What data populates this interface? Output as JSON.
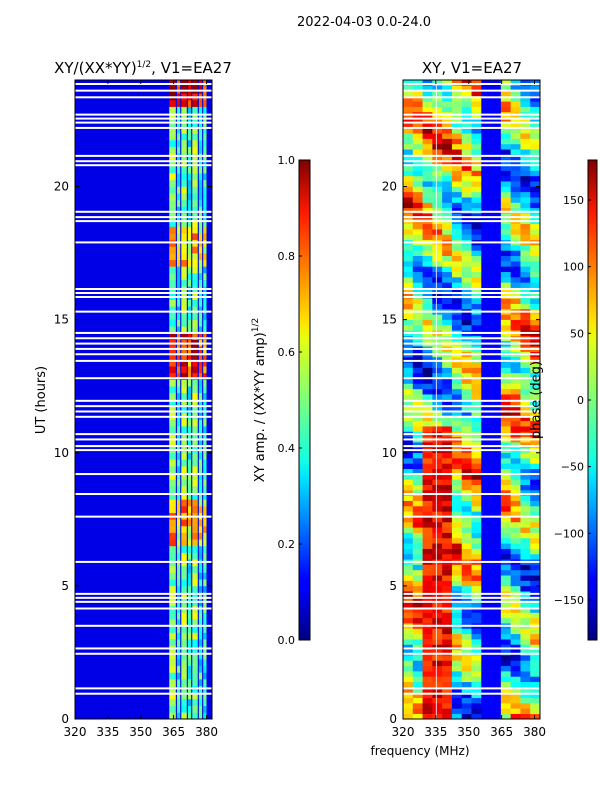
{
  "suptitle": "2022-04-03 0.0-24.0",
  "shared_xlabel": "frequency (MHz)",
  "chart_data": [
    {
      "type": "heatmap",
      "title": "XY/(XX*YY)",
      "title_exponent": "1/2",
      "title_suffix": ", V1=EA27",
      "xlabel": "",
      "ylabel": "UT (hours)",
      "xlim": [
        320,
        382.5
      ],
      "ylim": [
        0,
        24
      ],
      "xticks": [
        320,
        335,
        350,
        365,
        380
      ],
      "yticks": [
        0,
        5,
        10,
        15,
        20
      ],
      "background_value": 0.1,
      "rfi_bands_mhz": [
        [
          363,
          366
        ],
        [
          366.5,
          368
        ],
        [
          368.5,
          371
        ],
        [
          371.5,
          373
        ],
        [
          373.5,
          376
        ],
        [
          376.5,
          378
        ],
        [
          378.5,
          380
        ]
      ],
      "colorbar": {
        "label": "XY amp. / (XX*YY amp)",
        "label_exponent": "1/2",
        "range": [
          0,
          1
        ],
        "ticks": [
          "0.0",
          "0.2",
          "0.4",
          "0.6",
          "0.8",
          "1.0"
        ],
        "colormap": "jet"
      },
      "flagged_ut_hours": [
        0.95,
        1.15,
        2.45,
        2.65,
        3.5,
        4.15,
        4.4,
        4.55,
        4.7,
        5.9,
        7.6,
        8.45,
        9.2,
        10.1,
        10.25,
        10.5,
        10.7,
        11.35,
        11.55,
        11.75,
        11.95,
        12.8,
        13.45,
        13.7,
        13.9,
        14.1,
        14.3,
        14.5,
        15.3,
        15.85,
        16.0,
        16.15,
        17.9,
        18.7,
        18.85,
        19.05,
        20.8,
        20.95,
        21.15,
        22.2,
        22.4,
        22.55,
        22.7,
        23.35,
        23.6,
        23.85
      ]
    },
    {
      "type": "heatmap",
      "title": "XY, V1=EA27",
      "xlabel": "frequency (MHz)",
      "ylabel": "",
      "xlim": [
        320,
        382.5
      ],
      "ylim": [
        0,
        24
      ],
      "xticks": [
        320,
        335,
        350,
        365,
        380
      ],
      "yticks": [
        0,
        5,
        10,
        15,
        20
      ],
      "colorbar": {
        "label": "phase (deg)",
        "range": [
          -180,
          180
        ],
        "ticks": [
          "−150",
          "−100",
          "−50",
          "0",
          "50",
          "100",
          "150"
        ],
        "colormap": "jet"
      },
      "flagged_ut_hours": [
        0.95,
        1.15,
        2.45,
        2.65,
        3.5,
        4.15,
        4.4,
        4.55,
        4.7,
        5.9,
        7.6,
        8.45,
        9.2,
        10.1,
        10.25,
        10.5,
        10.7,
        11.35,
        11.55,
        11.75,
        11.95,
        12.8,
        13.45,
        13.7,
        13.9,
        14.1,
        14.3,
        14.5,
        15.3,
        15.85,
        16.0,
        16.15,
        17.9,
        18.7,
        18.85,
        19.05,
        20.8,
        20.95,
        21.15,
        22.2,
        22.4,
        22.55,
        22.7,
        23.35,
        23.6,
        23.85
      ]
    }
  ]
}
